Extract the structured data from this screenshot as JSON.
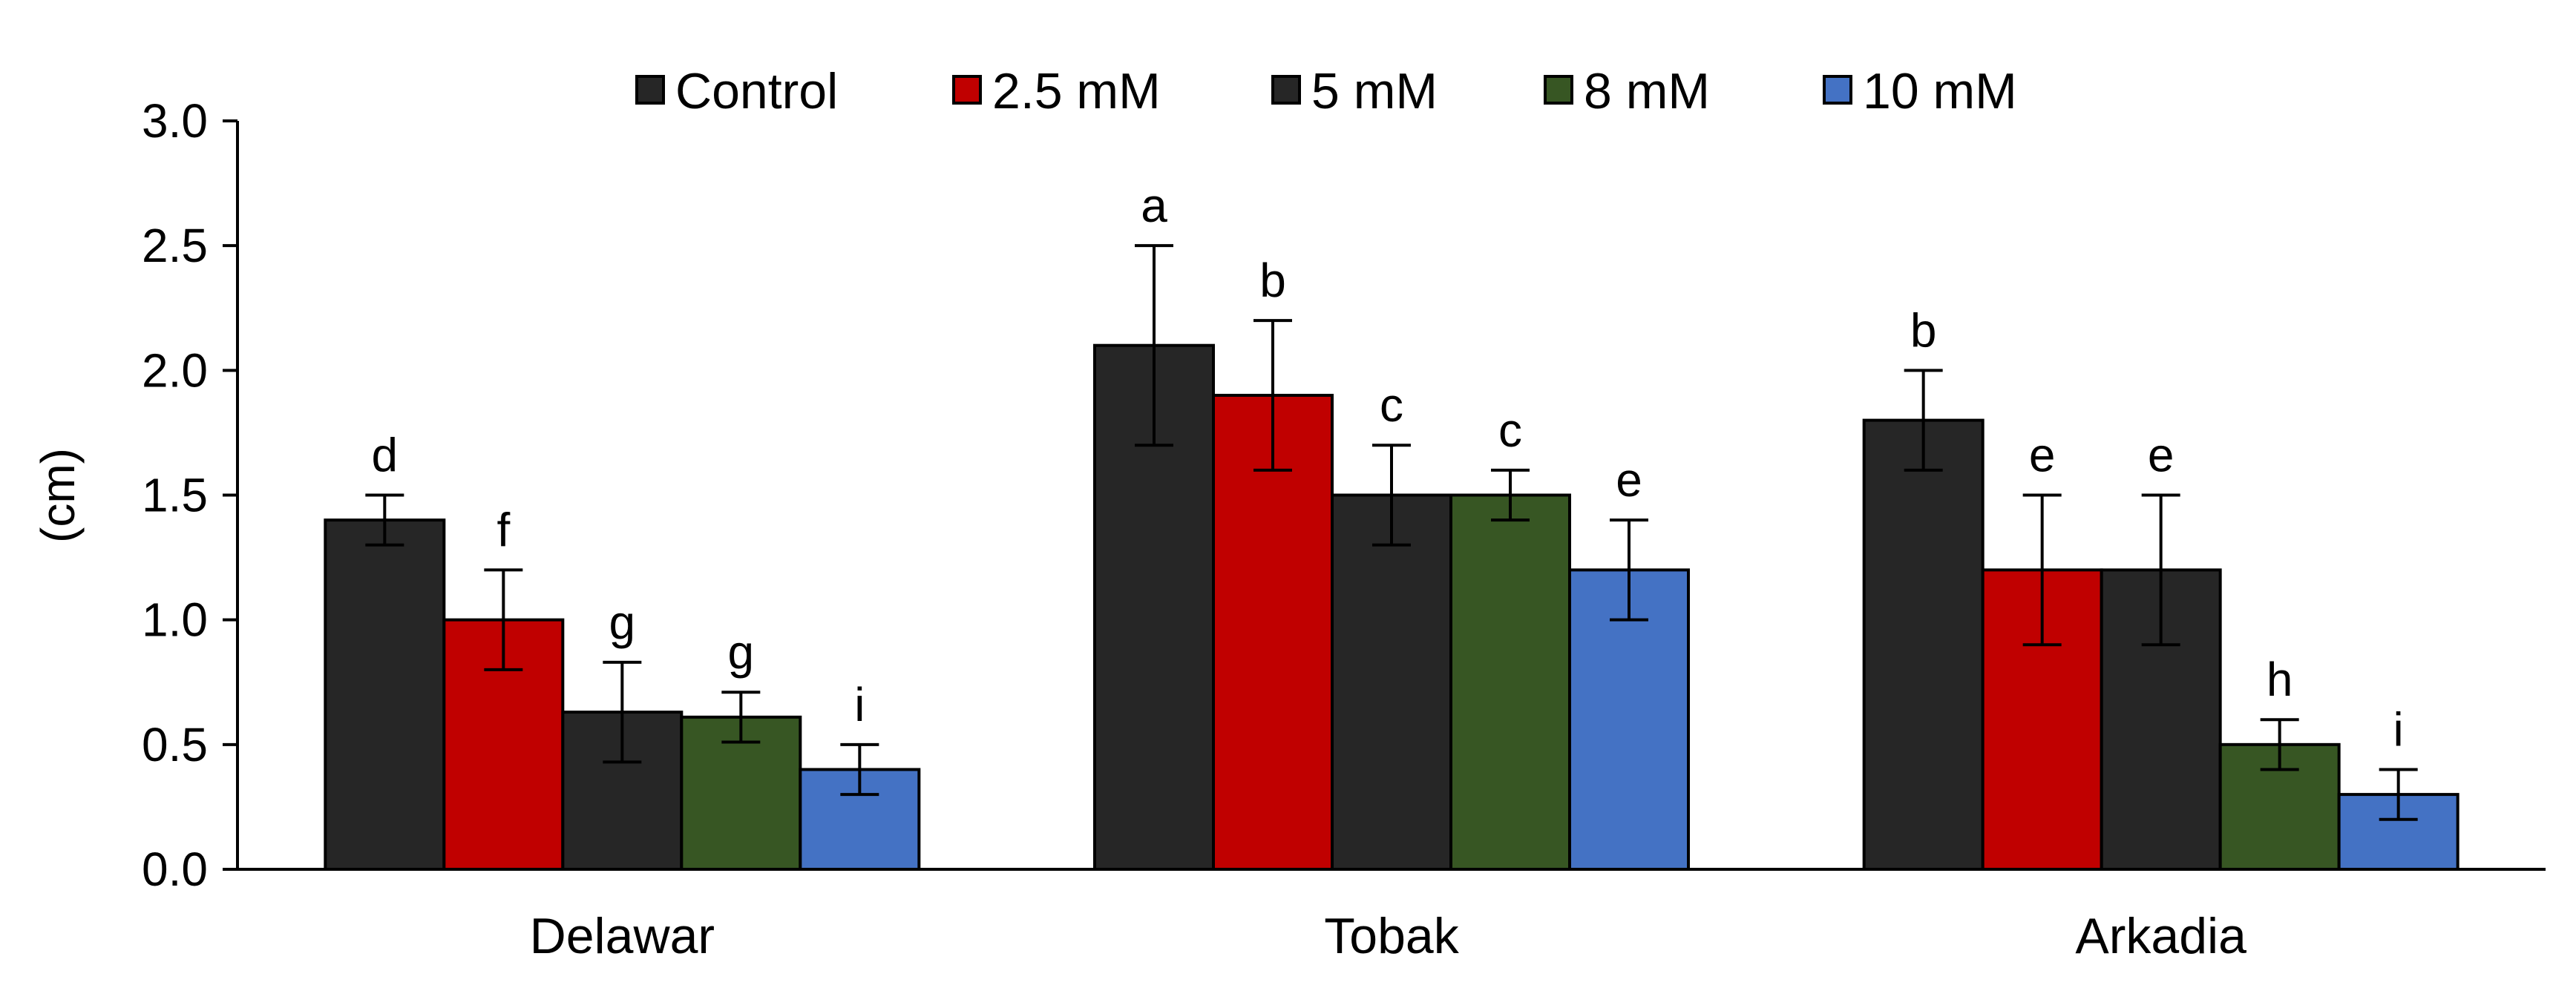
{
  "chart_data": {
    "type": "bar",
    "title": "",
    "xlabel": "",
    "ylabel": "(cm)",
    "ylim": [
      0,
      3.0
    ],
    "yticks": [
      "0.0",
      "0.5",
      "1.0",
      "1.5",
      "2.0",
      "2.5",
      "3.0"
    ],
    "grid": false,
    "legend_position": "top-center",
    "categories": [
      "Delawar",
      "Tobak",
      "Arkadia"
    ],
    "series": [
      {
        "name": "Control",
        "color": "#262626",
        "values": [
          1.4,
          2.1,
          1.8
        ],
        "errors": [
          0.1,
          0.4,
          0.2
        ],
        "labels": [
          "d",
          "a",
          "b"
        ]
      },
      {
        "name": "2.5 mM",
        "color": "#c00000",
        "values": [
          1.0,
          1.9,
          1.2
        ],
        "errors": [
          0.2,
          0.3,
          0.3
        ],
        "labels": [
          "f",
          "b",
          "e"
        ]
      },
      {
        "name": "5 mM",
        "color": "#262626",
        "values": [
          0.63,
          1.5,
          1.2
        ],
        "errors": [
          0.2,
          0.2,
          0.3
        ],
        "labels": [
          "g",
          "c",
          "e"
        ]
      },
      {
        "name": "8 mM",
        "color": "#375623",
        "values": [
          0.61,
          1.5,
          0.5
        ],
        "errors": [
          0.1,
          0.1,
          0.1
        ],
        "labels": [
          "g",
          "c",
          "h"
        ]
      },
      {
        "name": "10 mM",
        "color": "#4472c4",
        "values": [
          0.4,
          1.2,
          0.3
        ],
        "errors": [
          0.1,
          0.2,
          0.1
        ],
        "labels": [
          "i",
          "e",
          "i"
        ]
      }
    ]
  }
}
